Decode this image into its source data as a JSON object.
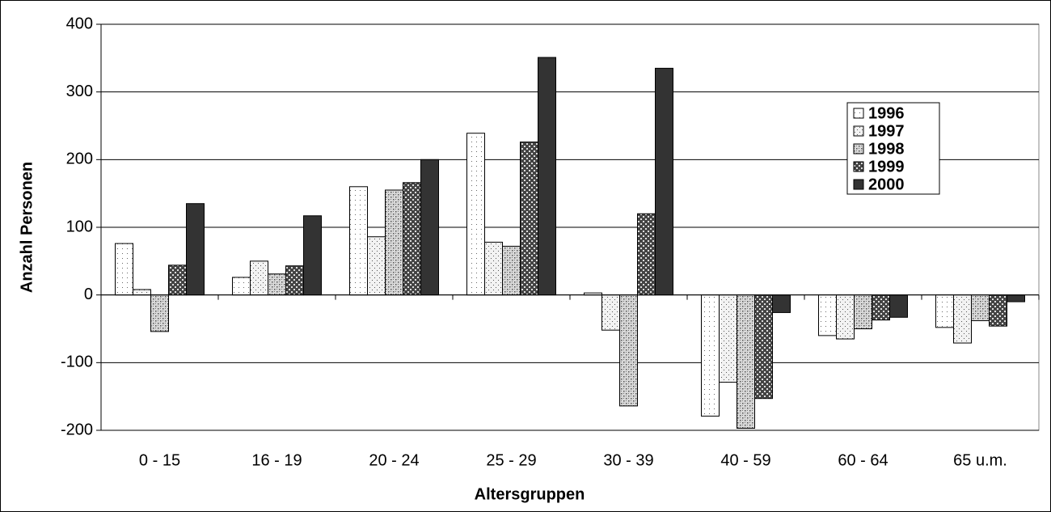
{
  "chart_data": {
    "type": "bar",
    "x_label": "Altersgruppen",
    "y_label": "Anzahl Personen",
    "categories": [
      "0 - 15",
      "16 - 19",
      "20 - 24",
      "25 - 29",
      "30 - 39",
      "40 - 59",
      "60 - 64",
      "65 u.m."
    ],
    "series": [
      {
        "name": "1996",
        "color": "#ffffff",
        "pattern": "dots-sparse",
        "values": [
          76,
          26,
          160,
          239,
          3,
          -179,
          -60,
          -48
        ]
      },
      {
        "name": "1997",
        "color": "#f2f2f2",
        "pattern": "dots",
        "values": [
          8,
          50,
          86,
          78,
          -52,
          -129,
          -65,
          -71
        ]
      },
      {
        "name": "1998",
        "color": "#d9d9d9",
        "pattern": "dots-dense",
        "values": [
          -54,
          31,
          155,
          72,
          -164,
          -197,
          -50,
          -38
        ]
      },
      {
        "name": "1999",
        "color": "#444444",
        "pattern": "checker",
        "values": [
          44,
          43,
          166,
          226,
          120,
          -153,
          -37,
          -46
        ]
      },
      {
        "name": "2000",
        "color": "#333333",
        "pattern": "solid",
        "values": [
          135,
          117,
          200,
          351,
          335,
          -26,
          -33,
          -10
        ]
      }
    ],
    "ylim": [
      -200,
      400
    ],
    "yticks": [
      -200,
      -100,
      0,
      100,
      200,
      300,
      400
    ],
    "grid": true,
    "legend": "upper right"
  }
}
